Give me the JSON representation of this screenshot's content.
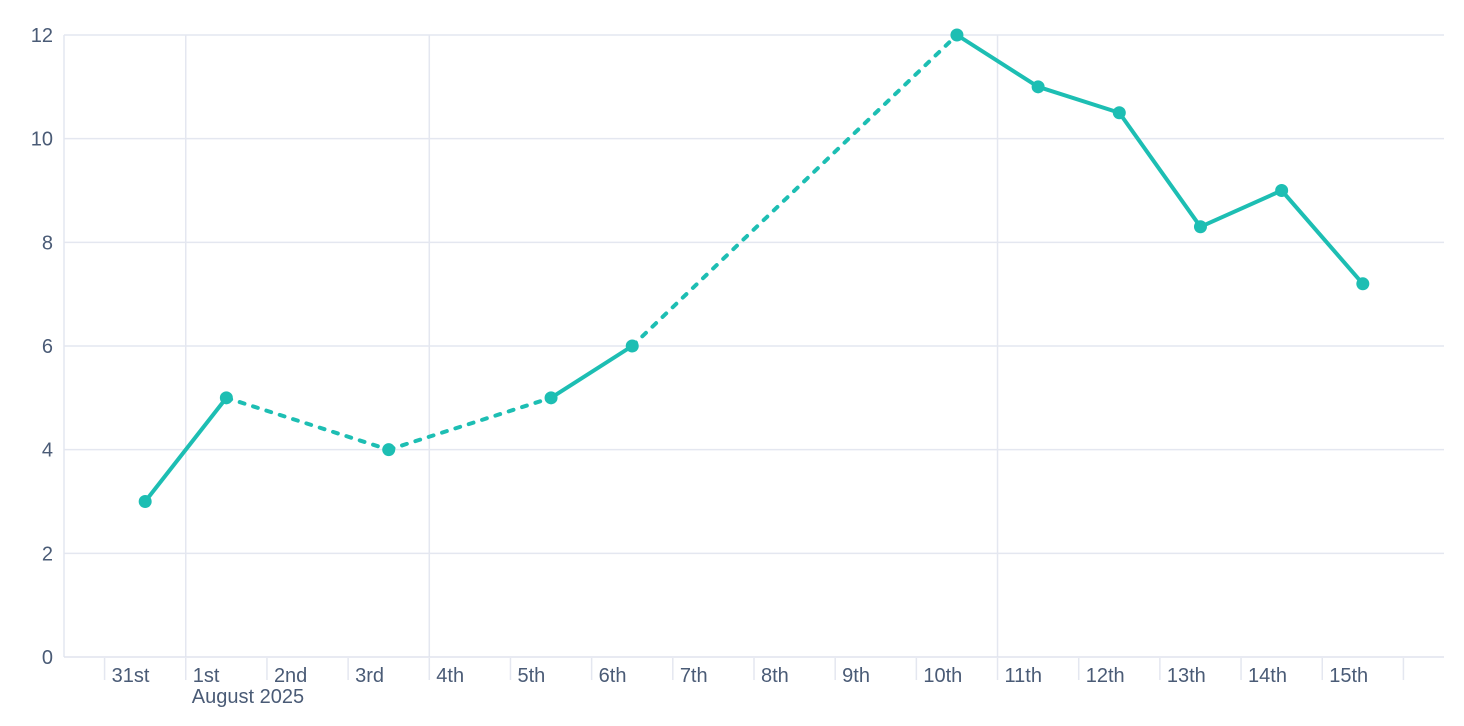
{
  "chart": {
    "background": "#ffffff",
    "accent_color": "#1dbeb3",
    "label_color": "#4a5b76",
    "grid_color": "#e4e7f0",
    "axis_color": "#e0e4ee"
  },
  "chart_data": {
    "type": "line",
    "title": "",
    "legend": "none",
    "x_tick_labels": [
      "31st",
      "1st",
      "2nd",
      "3rd",
      "4th",
      "5th",
      "6th",
      "7th",
      "8th",
      "9th",
      "10th",
      "11th",
      "12th",
      "13th",
      "14th",
      "15th",
      ""
    ],
    "x_axis_secondary_label": "August 2025",
    "x_axis_secondary_label_tick_index": 1,
    "ylim": [
      0,
      12
    ],
    "y_ticks": [
      0,
      2,
      4,
      6,
      8,
      10,
      12
    ],
    "grid": {
      "horizontal_at_values": [
        2,
        4,
        6,
        8,
        10,
        12
      ],
      "vertical_at_tick_indices": [
        1,
        4,
        11
      ],
      "left_border": true
    },
    "series": [
      {
        "name": "daily-value",
        "marker": "circle",
        "points": [
          {
            "x_label": "31st",
            "slot": 0,
            "y": 3
          },
          {
            "x_label": "1st",
            "slot": 1,
            "y": 5
          },
          {
            "x_label": "3rd",
            "slot": 3,
            "y": 4
          },
          {
            "x_label": "5th",
            "slot": 5,
            "y": 5
          },
          {
            "x_label": "6th",
            "slot": 6,
            "y": 6
          },
          {
            "x_label": "10th",
            "slot": 10,
            "y": 12
          },
          {
            "x_label": "11th",
            "slot": 11,
            "y": 11
          },
          {
            "x_label": "12th",
            "slot": 12,
            "y": 10.5
          },
          {
            "x_label": "13th",
            "slot": 13,
            "y": 8.3
          },
          {
            "x_label": "14th",
            "slot": 14,
            "y": 9
          },
          {
            "x_label": "15th",
            "slot": 15,
            "y": 7.2
          }
        ],
        "segment_styles": [
          "solid",
          "dashed",
          "dashed",
          "solid",
          "dashed",
          "solid",
          "solid",
          "solid",
          "solid",
          "solid"
        ]
      }
    ]
  }
}
